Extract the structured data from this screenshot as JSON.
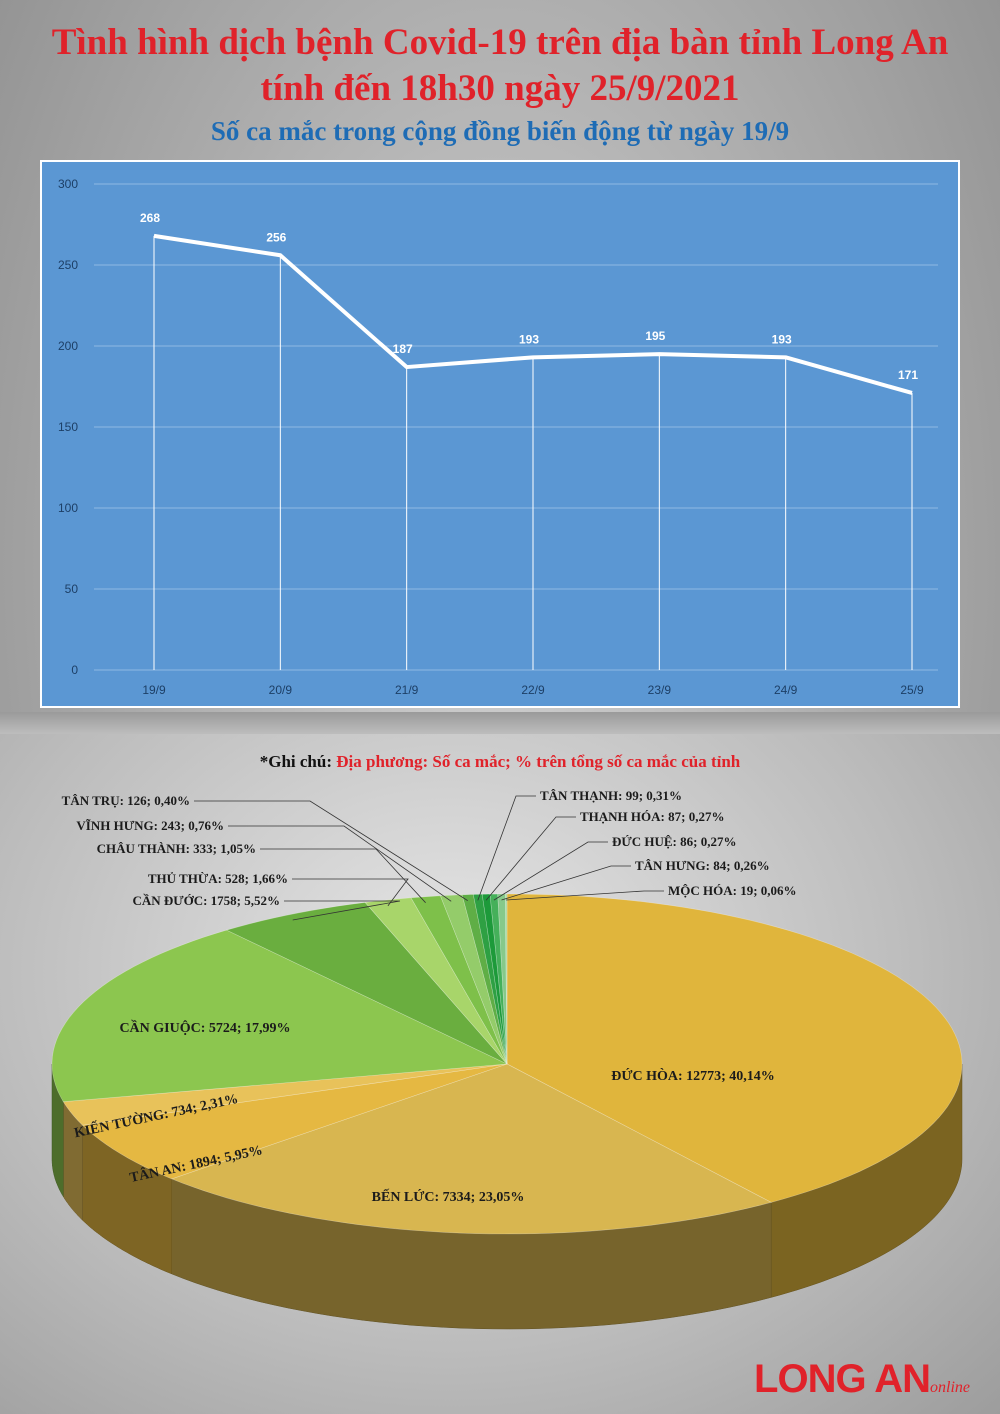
{
  "title_line1": "Tình hình dịch bệnh Covid-19 trên địa bàn tỉnh Long An",
  "title_line2": "tính đến 18h30 ngày 25/9/2021",
  "line_chart_title": "Số ca mắc trong cộng đồng biến động từ ngày 19/9",
  "pie_note_key": "*Ghi chú:",
  "pie_note_value": "Địa phương: Số ca mắc; % trên tổng số ca mắc của tỉnh",
  "brand_main": "LONG AN",
  "brand_sub": "online",
  "colors": {
    "title_red": "#e0222a",
    "subtitle_blue": "#1e6cb5",
    "line_bg": "#5b97d3"
  },
  "chart_data": [
    {
      "type": "line",
      "title": "Số ca mắc trong cộng đồng biến động từ ngày 19/9",
      "categories": [
        "19/9",
        "20/9",
        "21/9",
        "22/9",
        "23/9",
        "24/9",
        "25/9"
      ],
      "values": [
        268,
        256,
        187,
        193,
        195,
        193,
        171
      ],
      "ylim": [
        0,
        300
      ],
      "yticks": [
        0,
        50,
        100,
        150,
        200,
        250,
        300
      ],
      "grid": true,
      "data_labels": true
    },
    {
      "type": "pie",
      "three_d": true,
      "slices": [
        {
          "name": "ĐỨC HÒA",
          "value": 12773,
          "percent": "40,14%",
          "label": "ĐỨC HÒA: 12773; 40,14%",
          "color": "#e0b53c"
        },
        {
          "name": "BẾN LỨC",
          "value": 7334,
          "percent": "23,05%",
          "label": "BẾN LỨC: 7334; 23,05%",
          "color": "#d8b650"
        },
        {
          "name": "TÂN AN",
          "value": 1894,
          "percent": "5,95%",
          "label": "TÂN AN: 1894; 5,95%",
          "color": "#e5b842"
        },
        {
          "name": "KIẾN TƯỜNG",
          "value": 734,
          "percent": "2,31%",
          "label": "KIẾN TƯỜNG: 734; 2,31%",
          "color": "#e8c25a"
        },
        {
          "name": "CẦN GIUỘC",
          "value": 5724,
          "percent": "17,99%",
          "label": "CẦN GIUỘC: 5724; 17,99%",
          "color": "#8cc64f"
        },
        {
          "name": "CẦN ĐƯỚC",
          "value": 1758,
          "percent": "5,52%",
          "label": "CẦN ĐƯỚC: 1758; 5,52%",
          "color": "#6aae3f"
        },
        {
          "name": "THỦ THỪA",
          "value": 528,
          "percent": "1,66%",
          "label": "THỦ THỪA: 528; 1,66%",
          "color": "#a8d56a"
        },
        {
          "name": "CHÂU THÀNH",
          "value": 333,
          "percent": "1,05%",
          "label": "CHÂU THÀNH: 333; 1,05%",
          "color": "#7ec04a"
        },
        {
          "name": "VĨNH HƯNG",
          "value": 243,
          "percent": "0,76%",
          "label": "VĨNH HƯNG: 243; 0,76%",
          "color": "#94cc6a"
        },
        {
          "name": "TÂN TRỤ",
          "value": 126,
          "percent": "0,40%",
          "label": "TÂN TRỤ: 126; 0,40%",
          "color": "#5fae46"
        },
        {
          "name": "TÂN THẠNH",
          "value": 99,
          "percent": "0,31%",
          "label": "TÂN THẠNH: 99; 0,31%",
          "color": "#2ea043"
        },
        {
          "name": "THẠNH HÓA",
          "value": 87,
          "percent": "0,27%",
          "label": "THẠNH HÓA: 87; 0,27%",
          "color": "#1d9a3a"
        },
        {
          "name": "ĐỨC HUỆ",
          "value": 86,
          "percent": "0,27%",
          "label": "ĐỨC HUỆ: 86; 0,27%",
          "color": "#45b05a"
        },
        {
          "name": "TÂN HƯNG",
          "value": 84,
          "percent": "0,26%",
          "label": "TÂN HƯNG: 84; 0,26%",
          "color": "#86c98a"
        },
        {
          "name": "MỘC HÓA",
          "value": 19,
          "percent": "0,06%",
          "label": "MỘC HÓA: 19; 0,06%",
          "color": "#a9d9a0"
        }
      ]
    }
  ]
}
